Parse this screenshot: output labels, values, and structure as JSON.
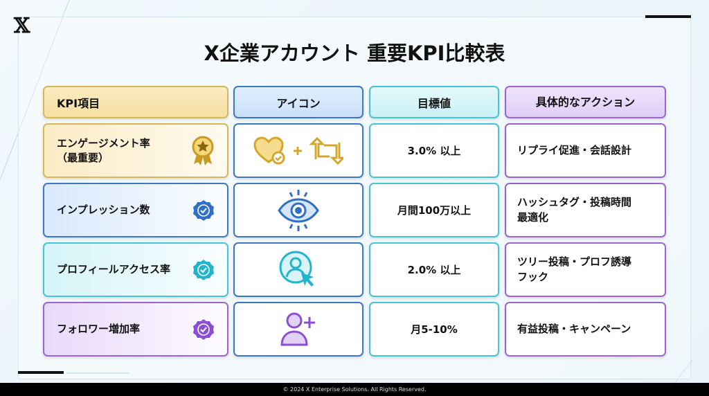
{
  "logo": "𝕏",
  "title": "X企業アカウント 重要KPI比較表",
  "headers": [
    "KPI項目",
    "アイコン",
    "目標値",
    "具体的なアクション"
  ],
  "rows": [
    {
      "kpi": "エンゲージメント率\n（最重要）",
      "badge": "award-medal-icon",
      "icon": "heart-check-plus-retweet-icon",
      "target": "3.0% 以上",
      "action": "リプライ促進・会話設計",
      "color": "#d4a72c"
    },
    {
      "kpi": "インプレッション数",
      "badge": "verified-badge-icon",
      "icon": "eye-icon",
      "target": "月間100万以上",
      "action": "ハッシュタグ・投稿時間\n最適化",
      "color": "#2f6fc4"
    },
    {
      "kpi": "プロフィールアクセス率",
      "badge": "verified-badge-icon",
      "icon": "profile-click-icon",
      "target": "2.0% 以上",
      "action": "ツリー投稿・プロフ誘導\nフック",
      "color": "#22b4cc"
    },
    {
      "kpi": "フォロワー増加率",
      "badge": "verified-badge-icon",
      "icon": "add-user-icon",
      "target": "月5-10%",
      "action": "有益投稿・キャンペーン",
      "color": "#8a4fd0"
    }
  ],
  "footer": "© 2024 X Enterprise Solutions. All Rights Reserved."
}
